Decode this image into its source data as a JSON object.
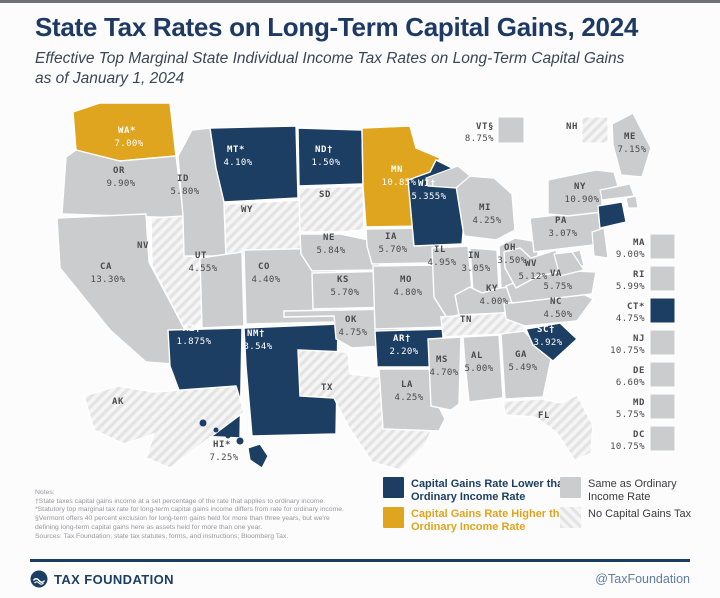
{
  "header": {
    "title": "State Tax Rates on Long-Term Capital Gains, 2024",
    "subtitle": "Effective Top Marginal State Individual Income Tax Rates on Long-Term Capital Gains as of January 1, 2024"
  },
  "colors": {
    "lower": "#1d3e63",
    "higher": "#e0a51e",
    "same": "#cbcccd",
    "hatch_base": "#f5f5f6",
    "hatch_line": "#e3e3e4",
    "label_dark": "#4b4b4d",
    "label_light": "#ffffff",
    "title": "#1e3a64",
    "divider": "#1d3e63",
    "handle": "#5e7da0"
  },
  "legend": {
    "items": [
      {
        "id": "lower",
        "label": "Capital Gains Rate Lower than Ordinary Income Rate"
      },
      {
        "id": "higher",
        "label": "Capital Gains Rate Higher than Ordinary Income Rate"
      },
      {
        "id": "same",
        "label": "Same as Ordinary Income Rate"
      },
      {
        "id": "none",
        "label": "No Capital Gains Tax"
      }
    ]
  },
  "notes": {
    "heading": "Notes:",
    "lines": [
      "†State taxes capital gains income at a set percentage of the rate that applies to ordinary income.",
      "*Statutory top marginal tax rate for long-term capital gains income differs from rate for ordinary income.",
      "§Vermont offers 40 percent exclusion for long-term gains held for more than three years, but we're",
      "defining long-term capital gains here as assets held for more than one year.",
      "Sources: Tax Foundation; state tax statutes, forms, and instructions; Bloomberg Tax."
    ]
  },
  "footer": {
    "brand": "TAX FOUNDATION",
    "handle": "@TaxFoundation"
  },
  "map": {
    "states": [
      {
        "code": "WA",
        "mark": "*",
        "value": "7.00%",
        "category": "higher"
      },
      {
        "code": "OR",
        "mark": "",
        "value": "9.90%",
        "category": "same"
      },
      {
        "code": "CA",
        "mark": "",
        "value": "13.30%",
        "category": "same"
      },
      {
        "code": "NV",
        "mark": "",
        "value": "",
        "category": "none"
      },
      {
        "code": "ID",
        "mark": "",
        "value": "5.80%",
        "category": "same"
      },
      {
        "code": "MT",
        "mark": "*",
        "value": "4.10%",
        "category": "lower"
      },
      {
        "code": "WY",
        "mark": "",
        "value": "",
        "category": "none"
      },
      {
        "code": "UT",
        "mark": "",
        "value": "4.55%",
        "category": "same"
      },
      {
        "code": "CO",
        "mark": "",
        "value": "4.40%",
        "category": "same"
      },
      {
        "code": "AZ",
        "mark": "†",
        "value": "1.875%",
        "category": "lower"
      },
      {
        "code": "NM",
        "mark": "†",
        "value": "3.54%",
        "category": "lower"
      },
      {
        "code": "ND",
        "mark": "†",
        "value": "1.50%",
        "category": "lower"
      },
      {
        "code": "SD",
        "mark": "",
        "value": "",
        "category": "none"
      },
      {
        "code": "NE",
        "mark": "",
        "value": "5.84%",
        "category": "same"
      },
      {
        "code": "KS",
        "mark": "",
        "value": "5.70%",
        "category": "same"
      },
      {
        "code": "OK",
        "mark": "",
        "value": "4.75%",
        "category": "same"
      },
      {
        "code": "TX",
        "mark": "",
        "value": "",
        "category": "none"
      },
      {
        "code": "MN",
        "mark": "",
        "value": "10.85%",
        "category": "higher"
      },
      {
        "code": "IA",
        "mark": "",
        "value": "5.70%",
        "category": "same"
      },
      {
        "code": "MO",
        "mark": "",
        "value": "4.80%",
        "category": "same"
      },
      {
        "code": "AR",
        "mark": "†",
        "value": "2.20%",
        "category": "lower"
      },
      {
        "code": "LA",
        "mark": "",
        "value": "4.25%",
        "category": "same"
      },
      {
        "code": "WI",
        "mark": "†",
        "value": "5.355%",
        "category": "lower"
      },
      {
        "code": "IL",
        "mark": "",
        "value": "4.95%",
        "category": "same"
      },
      {
        "code": "MI",
        "mark": "",
        "value": "4.25%",
        "category": "same"
      },
      {
        "code": "IN",
        "mark": "",
        "value": "3.05%",
        "category": "same"
      },
      {
        "code": "OH",
        "mark": "",
        "value": "3.50%",
        "category": "same"
      },
      {
        "code": "KY",
        "mark": "",
        "value": "4.00%",
        "category": "same"
      },
      {
        "code": "TN",
        "mark": "",
        "value": "",
        "category": "none"
      },
      {
        "code": "MS",
        "mark": "",
        "value": "4.70%",
        "category": "same"
      },
      {
        "code": "AL",
        "mark": "",
        "value": "5.00%",
        "category": "same"
      },
      {
        "code": "GA",
        "mark": "",
        "value": "5.49%",
        "category": "same"
      },
      {
        "code": "FL",
        "mark": "",
        "value": "",
        "category": "none"
      },
      {
        "code": "SC",
        "mark": "†",
        "value": "3.92%",
        "category": "lower"
      },
      {
        "code": "NC",
        "mark": "",
        "value": "4.50%",
        "category": "same"
      },
      {
        "code": "VA",
        "mark": "",
        "value": "5.75%",
        "category": "same"
      },
      {
        "code": "WV",
        "mark": "",
        "value": "5.12%",
        "category": "same"
      },
      {
        "code": "PA",
        "mark": "",
        "value": "3.07%",
        "category": "same"
      },
      {
        "code": "NY",
        "mark": "",
        "value": "10.90%",
        "category": "same"
      },
      {
        "code": "ME",
        "mark": "",
        "value": "7.15%",
        "category": "same"
      },
      {
        "code": "AK",
        "mark": "",
        "value": "",
        "category": "none"
      },
      {
        "code": "HI",
        "mark": "*",
        "value": "7.25%",
        "category": "lower"
      }
    ],
    "callouts_top": [
      {
        "code": "VT",
        "mark": "§",
        "value": "8.75%",
        "category": "same"
      },
      {
        "code": "NH",
        "mark": "",
        "value": "",
        "category": "none"
      }
    ],
    "callouts_east": [
      {
        "code": "MA",
        "mark": "",
        "value": "9.00%",
        "category": "same"
      },
      {
        "code": "RI",
        "mark": "",
        "value": "5.99%",
        "category": "same"
      },
      {
        "code": "CT",
        "mark": "*",
        "value": "4.75%",
        "category": "lower"
      },
      {
        "code": "NJ",
        "mark": "",
        "value": "10.75%",
        "category": "same"
      },
      {
        "code": "DE",
        "mark": "",
        "value": "6.60%",
        "category": "same"
      },
      {
        "code": "MD",
        "mark": "",
        "value": "5.75%",
        "category": "same"
      },
      {
        "code": "DC",
        "mark": "",
        "value": "10.75%",
        "category": "same"
      }
    ]
  }
}
